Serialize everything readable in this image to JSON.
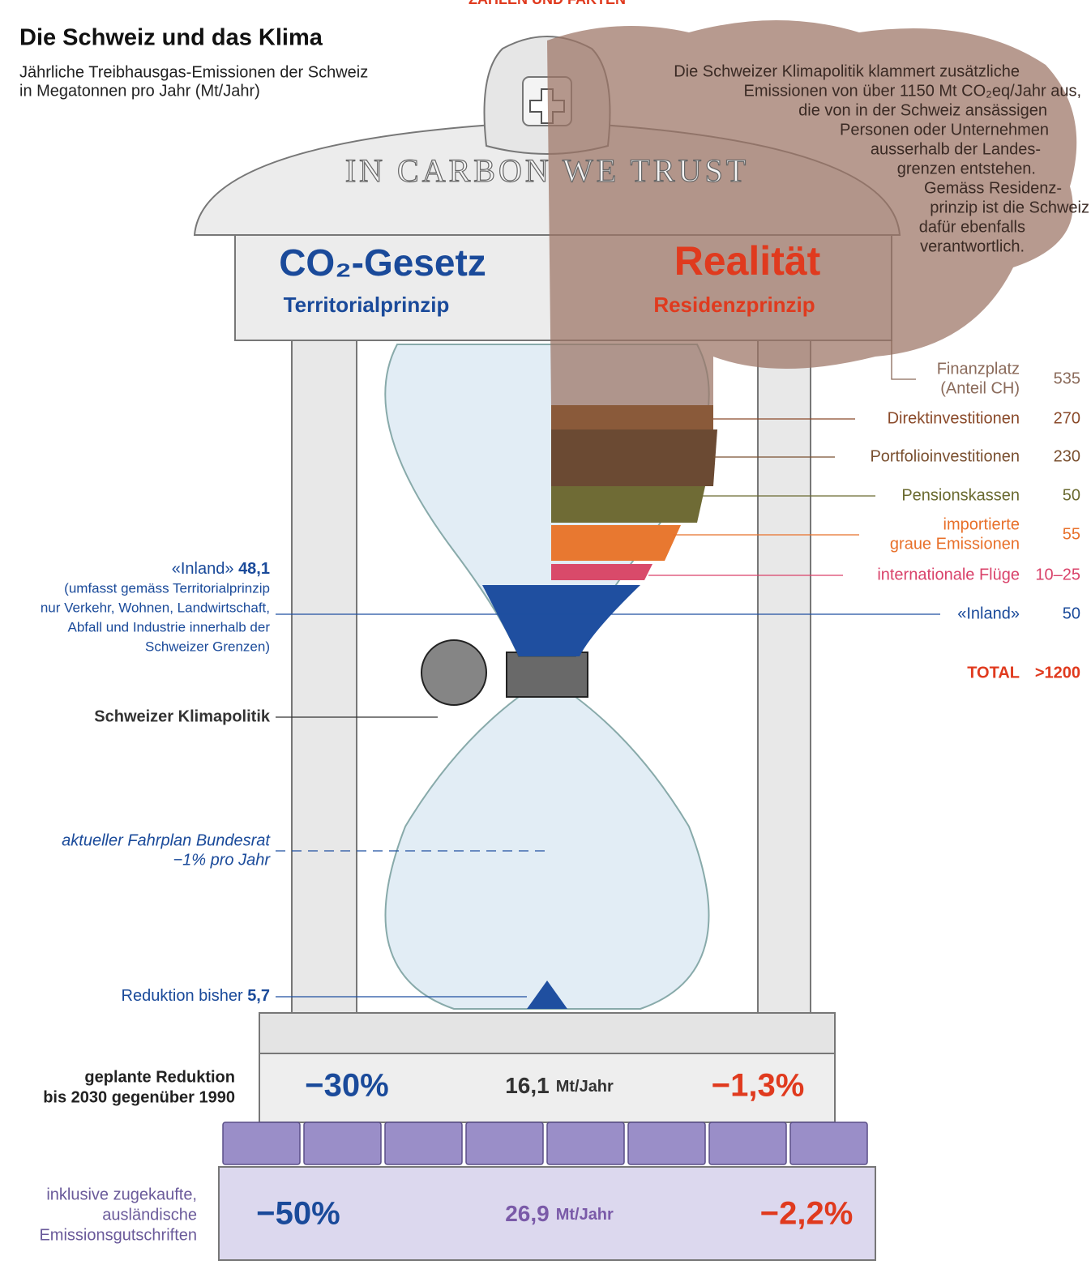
{
  "header": {
    "kicker": "ZAHLEN UND FAKTEN",
    "title": "Die Schweiz und das Klima",
    "subtitle": [
      "Jährliche Treibhausgas-Emissionen der Schweiz",
      "in Megatonnen pro Jahr (Mt/Jahr)"
    ]
  },
  "temple": {
    "inscription": "IN CARBON WE TRUST",
    "left": {
      "heading": "CO₂-Gesetz",
      "subheading": "Territorialprinzip"
    },
    "right": {
      "heading": "Realität",
      "subheading": "Residenzprinzip"
    }
  },
  "cloud": {
    "lines": [
      "Die Schweizer Klimapolitik klammert zusätzliche",
      "Emissionen von über 1150 Mt CO₂eq/Jahr aus,",
      "die von in der Schweiz ansässigen",
      "Personen oder Unternehmen",
      "ausserhalb der Landes-",
      "grenzen entstehen.",
      "Gemäss Residenz-",
      "prinzip ist die Schweiz",
      "dafür ebenfalls",
      "verantwortlich."
    ]
  },
  "residence": {
    "items": [
      {
        "label": [
          "Finanzplatz",
          "(Anteil CH)"
        ],
        "value": 535
      },
      {
        "label": [
          "Direktinvestitionen"
        ],
        "value": 270
      },
      {
        "label": [
          "Portfolioinvestitionen"
        ],
        "value": 230
      },
      {
        "label": [
          "Pensionskassen"
        ],
        "value": 50
      },
      {
        "label": [
          "importierte",
          "graue Emissionen"
        ],
        "value": 55
      },
      {
        "label": [
          "internationale Flüge"
        ],
        "value": "10–25"
      },
      {
        "label": [
          "«Inland»"
        ],
        "value": 50
      }
    ],
    "total": {
      "label": "TOTAL",
      "value": ">1200"
    }
  },
  "territorial": {
    "inland": {
      "label": "«Inland»",
      "value": "48,1",
      "note": [
        "(umfasst gemäss Territorialprinzip",
        "nur Verkehr, Wohnen, Landwirtschaft,",
        "Abfall und Industrie innerhalb der",
        "Schweizer Grenzen)"
      ]
    },
    "policy": "Schweizer Klimapolitik",
    "schedule": [
      "aktueller Fahrplan Bundesrat",
      "−1% pro Jahr"
    ],
    "reduction": {
      "label": "Reduktion bisher",
      "value": "5,7"
    }
  },
  "targets": [
    {
      "label": [
        "geplante Reduktion",
        "bis 2030 gegenüber 1990"
      ],
      "law": "−30%",
      "amount": "16,1",
      "unit": "Mt/Jahr",
      "reality": "−1,3%"
    },
    {
      "label": [
        "inklusive zugekaufte,",
        "ausländische",
        "Emissionsgutschriften"
      ],
      "law": "−50%",
      "amount": "26,9",
      "unit": "Mt/Jahr",
      "reality": "−2,2%"
    }
  ]
}
